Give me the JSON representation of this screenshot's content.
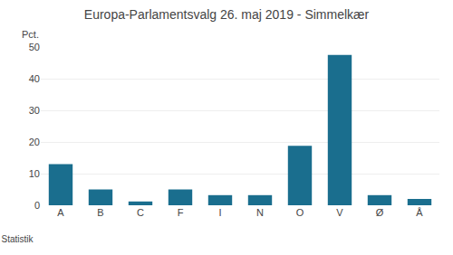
{
  "chart_data": {
    "type": "bar",
    "title": "Europa-Parlamentsvalg 26. maj 2019 - Simmelkær",
    "categories": [
      "A",
      "B",
      "C",
      "F",
      "I",
      "N",
      "O",
      "V",
      "Ø",
      "Å"
    ],
    "values": [
      13.0,
      5.0,
      1.2,
      5.0,
      3.2,
      3.2,
      18.8,
      47.5,
      3.2,
      2.0
    ],
    "color": "#1a6e8e",
    "ylabel": "Pct.",
    "ylim": [
      0,
      50
    ],
    "yticks": [
      0,
      10,
      20,
      30,
      40,
      50
    ],
    "grid": true,
    "annotations": [
      "© Danmarks Statistik"
    ]
  }
}
